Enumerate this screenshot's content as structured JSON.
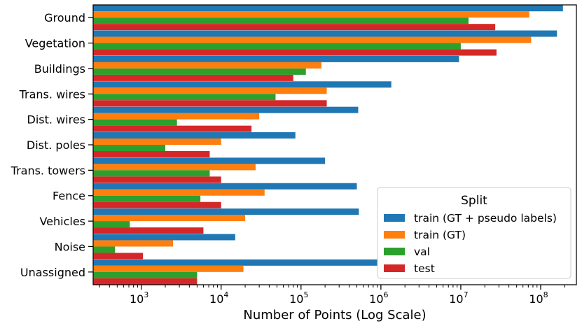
{
  "chart_data": {
    "type": "bar",
    "orientation": "horizontal",
    "xlabel": "Number of Points (Log Scale)",
    "ylabel": "",
    "xscale": "log",
    "xlim": [
      250,
      280000000
    ],
    "xticks": [
      {
        "value": 1000,
        "base": "10",
        "exp": "3"
      },
      {
        "value": 10000,
        "base": "10",
        "exp": "4"
      },
      {
        "value": 100000,
        "base": "10",
        "exp": "5"
      },
      {
        "value": 1000000,
        "base": "10",
        "exp": "6"
      },
      {
        "value": 10000000,
        "base": "10",
        "exp": "7"
      },
      {
        "value": 100000000,
        "base": "10",
        "exp": "8"
      }
    ],
    "grid": false,
    "legend": {
      "title": "Split",
      "position": "lower-right"
    },
    "categories": [
      "Ground",
      "Vegetation",
      "Buildings",
      "Trans. wires",
      "Dist. wires",
      "Dist. poles",
      "Trans. towers",
      "Fence",
      "Vehicles",
      "Noise",
      "Unassigned"
    ],
    "series": [
      {
        "name": "train (GT + pseudo labels)",
        "color": "#1f77b4",
        "values": [
          190000000,
          160000000,
          9500000,
          1350000,
          520000,
          85000,
          200000,
          500000,
          530000,
          15000,
          900000
        ]
      },
      {
        "name": "train (GT)",
        "color": "#ff7f0e",
        "values": [
          72000000,
          76000000,
          180000,
          210000,
          30000,
          10000,
          27000,
          35000,
          20000,
          2500,
          19000
        ]
      },
      {
        "name": "val",
        "color": "#2ca02c",
        "values": [
          12500000,
          10000000,
          115000,
          48000,
          2800,
          2000,
          7200,
          5500,
          720,
          470,
          5000
        ]
      },
      {
        "name": "test",
        "color": "#d62728",
        "values": [
          27000000,
          28000000,
          80000,
          210000,
          24000,
          7200,
          10000,
          10000,
          6000,
          1050,
          5000
        ]
      }
    ]
  }
}
